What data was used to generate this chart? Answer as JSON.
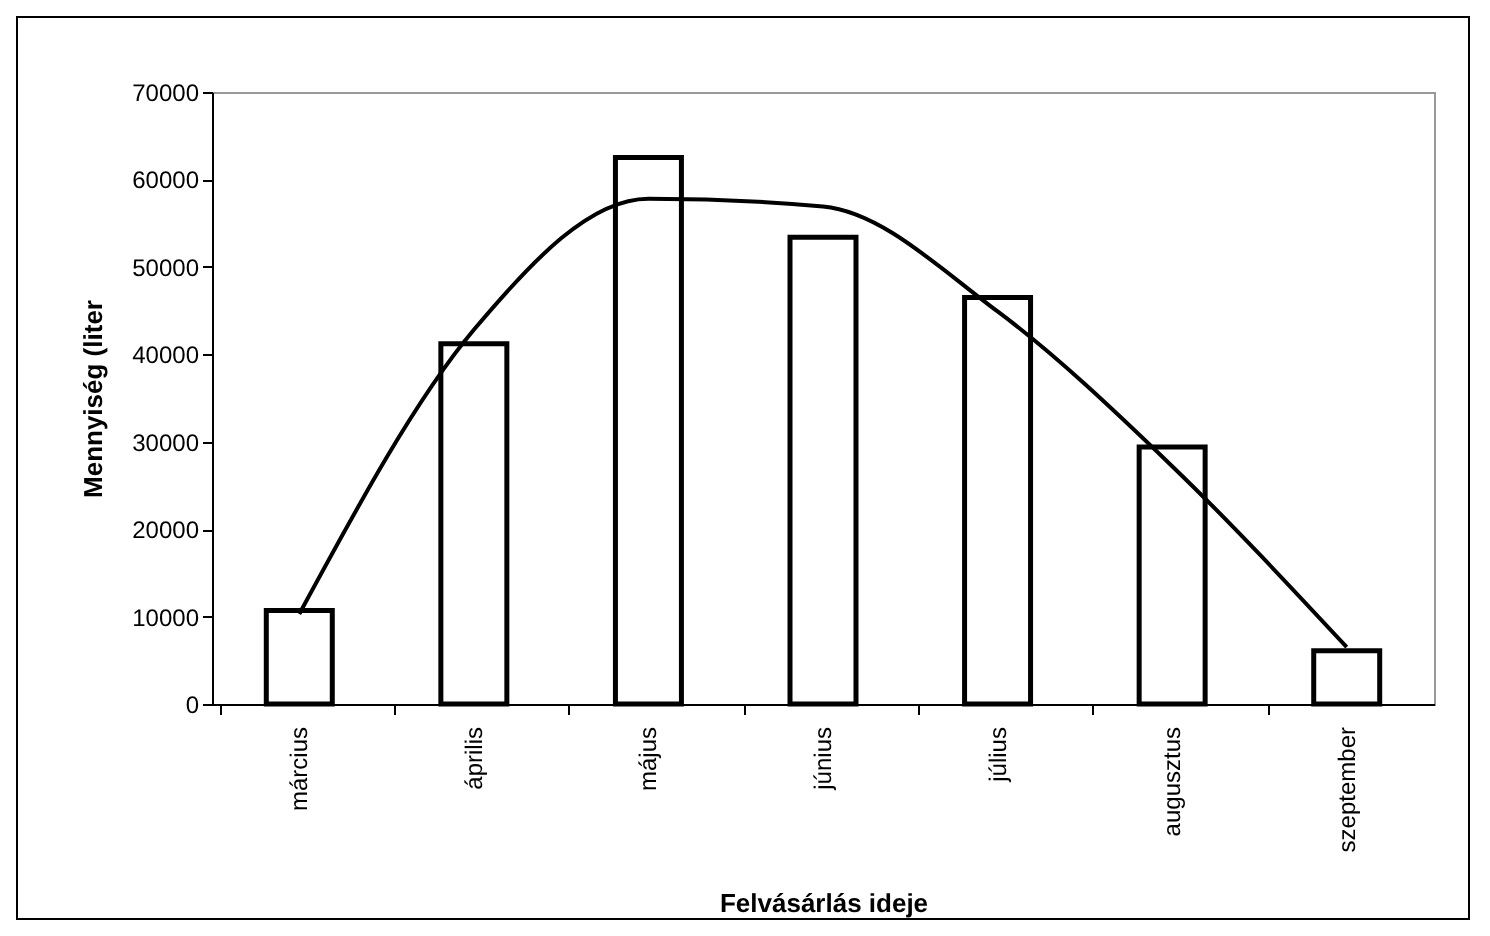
{
  "chart_data": {
    "type": "bar",
    "xlabel": "Felvásárlás ideje",
    "ylabel": "Mennyiség (liter",
    "categories": [
      "március",
      "április",
      "május",
      "június",
      "július",
      "augusztus",
      "szeptember"
    ],
    "series": [
      {
        "color": "#ffffff",
        "values": [
          10700,
          41200,
          62500,
          53400,
          46500,
          29400,
          6100
        ]
      },
      {
        "type": "line",
        "color": "#000000",
        "values": [
          10300,
          42800,
          57800,
          56900,
          44900,
          27200,
          6500
        ]
      }
    ],
    "ylim": [
      0,
      70000
    ],
    "yticks": [
      0,
      10000,
      20000,
      30000,
      40000,
      50000,
      60000,
      70000
    ],
    "grid": false,
    "marker": "none",
    "line_style": "solid"
  }
}
